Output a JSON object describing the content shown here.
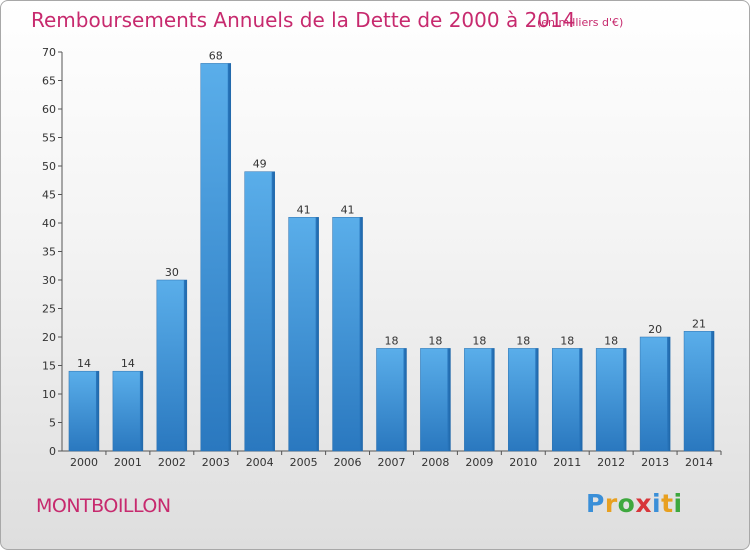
{
  "chart_data": {
    "type": "bar",
    "title": "Remboursements Annuels de la Dette de 2000 à 2014",
    "subtitle": "(en milliers d'€)",
    "categories": [
      "2000",
      "2001",
      "2002",
      "2003",
      "2004",
      "2005",
      "2006",
      "2007",
      "2008",
      "2009",
      "2010",
      "2011",
      "2012",
      "2013",
      "2014"
    ],
    "values": [
      14,
      14,
      30,
      68,
      49,
      41,
      41,
      18,
      18,
      18,
      18,
      18,
      18,
      20,
      21
    ],
    "ylim": [
      0,
      70
    ],
    "yticks": [
      0,
      5,
      10,
      15,
      20,
      25,
      30,
      35,
      40,
      45,
      50,
      55,
      60,
      65,
      70
    ],
    "grid": false,
    "bar_color": "#3d8fd6"
  },
  "footer": {
    "commune": "MONTBOILLON",
    "logo": "Proxiti"
  }
}
